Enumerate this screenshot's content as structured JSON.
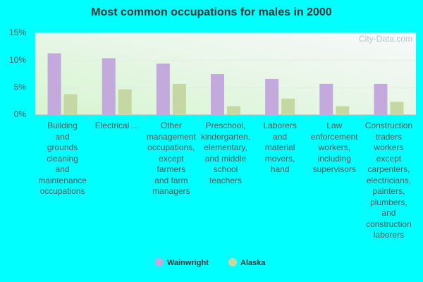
{
  "chart_data": {
    "type": "bar",
    "title": "Most common occupations for males in 2000",
    "watermark": "City-Data.com",
    "categories": [
      "Building\nand\ngrounds\ncleaning\nand\nmaintenance\noccupations",
      "Electrical ...",
      "Other\nmanagement\noccupations,\nexcept\nfarmers\nand farm\nmanagers",
      "Preschool,\nkindergarten,\nelementary,\nand middle\nschool\nteachers",
      "Laborers\nand\nmaterial\nmovers,\nhand",
      "Law\nenforcement\nworkers,\nincluding\nsupervisors",
      "Construction\ntraders\nworkers\nexcept\ncarpenters,\nelectricians,\npainters,\nplumbers,\nand\nconstruction\nlaborers"
    ],
    "series": [
      {
        "name": "Wainwright",
        "color": "#c3a9dc",
        "values": [
          11.3,
          10.4,
          9.4,
          7.5,
          6.6,
          5.7,
          5.7
        ]
      },
      {
        "name": "Alaska",
        "color": "#c5d8a4",
        "values": [
          3.8,
          4.7,
          5.7,
          1.6,
          3.0,
          1.6,
          2.4
        ]
      }
    ],
    "ylim": [
      0,
      15
    ],
    "yticks": [
      {
        "value": 0,
        "label": "0%"
      },
      {
        "value": 5,
        "label": "5%"
      },
      {
        "value": 10,
        "label": "10%"
      },
      {
        "value": 15,
        "label": "15%"
      }
    ],
    "grid": true
  }
}
